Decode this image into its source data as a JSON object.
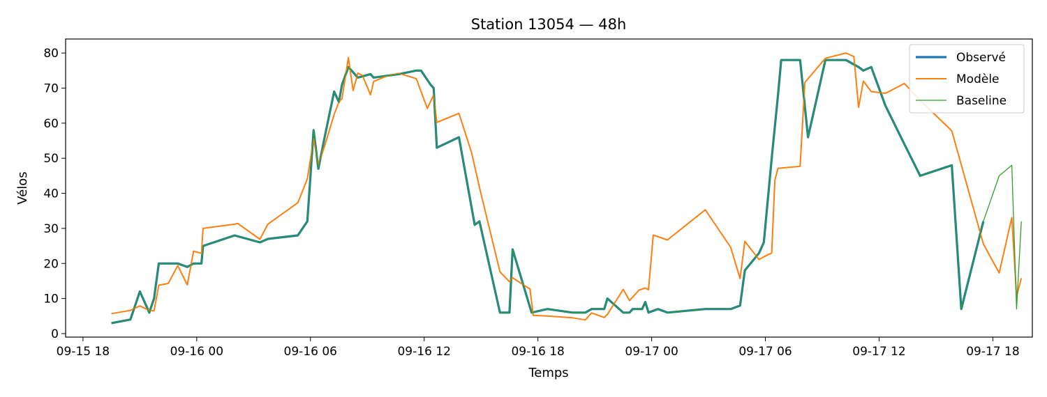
{
  "chart_data": {
    "type": "line",
    "title": "Station 13054 — 48h",
    "xlabel": "Temps",
    "ylabel": "Vélos",
    "x_unit": "datetime",
    "xlim": [
      "2015-09-15 17:05",
      "2015-09-17 20:05"
    ],
    "ylim": [
      -1,
      84
    ],
    "x_ticks": [
      {
        "at": "2015-09-15 18:00",
        "label": "09-15 18"
      },
      {
        "at": "2015-09-16 00:00",
        "label": "09-16 00"
      },
      {
        "at": "2015-09-16 06:00",
        "label": "09-16 06"
      },
      {
        "at": "2015-09-16 12:00",
        "label": "09-16 12"
      },
      {
        "at": "2015-09-16 18:00",
        "label": "09-16 18"
      },
      {
        "at": "2015-09-17 00:00",
        "label": "09-17 00"
      },
      {
        "at": "2015-09-17 06:00",
        "label": "09-17 06"
      },
      {
        "at": "2015-09-17 12:00",
        "label": "09-17 12"
      },
      {
        "at": "2015-09-17 18:00",
        "label": "09-17 18"
      }
    ],
    "y_ticks": [
      0,
      10,
      20,
      30,
      40,
      50,
      60,
      70,
      80
    ],
    "grid": false,
    "legend_position": "top-right",
    "series": [
      {
        "name": "Observé",
        "color": "#1f77b4",
        "points": [
          [
            "2015-09-15 19:30",
            3
          ],
          [
            "2015-09-15 20:30",
            4
          ],
          [
            "2015-09-15 21:00",
            12
          ],
          [
            "2015-09-15 21:30",
            6
          ],
          [
            "2015-09-15 21:45",
            10
          ],
          [
            "2015-09-15 22:00",
            20
          ],
          [
            "2015-09-15 23:00",
            20
          ],
          [
            "2015-09-15 23:30",
            19
          ],
          [
            "2015-09-15 23:50",
            20
          ],
          [
            "2015-09-16 00:15",
            20
          ],
          [
            "2015-09-16 00:20",
            25
          ],
          [
            "2015-09-16 02:00",
            28
          ],
          [
            "2015-09-16 03:20",
            26
          ],
          [
            "2015-09-16 03:45",
            27
          ],
          [
            "2015-09-16 05:20",
            28
          ],
          [
            "2015-09-16 05:50",
            32
          ],
          [
            "2015-09-16 06:10",
            58
          ],
          [
            "2015-09-16 06:25",
            47
          ],
          [
            "2015-09-16 06:45",
            56
          ],
          [
            "2015-09-16 07:15",
            69
          ],
          [
            "2015-09-16 07:30",
            66
          ],
          [
            "2015-09-16 07:40",
            71
          ],
          [
            "2015-09-16 08:00",
            76
          ],
          [
            "2015-09-16 08:30",
            73
          ],
          [
            "2015-09-16 09:10",
            74
          ],
          [
            "2015-09-16 09:20",
            73
          ],
          [
            "2015-09-16 10:40",
            74
          ],
          [
            "2015-09-16 11:35",
            75
          ],
          [
            "2015-09-16 11:50",
            75
          ],
          [
            "2015-09-16 12:20",
            71
          ],
          [
            "2015-09-16 12:30",
            70
          ],
          [
            "2015-09-16 12:40",
            53
          ],
          [
            "2015-09-16 13:50",
            56
          ],
          [
            "2015-09-16 14:40",
            31
          ],
          [
            "2015-09-16 14:55",
            32
          ],
          [
            "2015-09-16 16:00",
            6
          ],
          [
            "2015-09-16 16:30",
            6
          ],
          [
            "2015-09-16 16:40",
            24
          ],
          [
            "2015-09-16 17:40",
            6
          ],
          [
            "2015-09-16 18:30",
            7
          ],
          [
            "2015-09-16 19:50",
            6
          ],
          [
            "2015-09-16 20:30",
            6
          ],
          [
            "2015-09-16 20:50",
            7
          ],
          [
            "2015-09-16 21:30",
            7
          ],
          [
            "2015-09-16 21:40",
            10
          ],
          [
            "2015-09-16 22:30",
            6
          ],
          [
            "2015-09-16 22:50",
            6
          ],
          [
            "2015-09-16 23:00",
            7
          ],
          [
            "2015-09-16 23:30",
            7
          ],
          [
            "2015-09-16 23:40",
            9
          ],
          [
            "2015-09-16 23:50",
            6
          ],
          [
            "2015-09-17 00:20",
            7
          ],
          [
            "2015-09-17 00:50",
            6
          ],
          [
            "2015-09-17 02:50",
            7
          ],
          [
            "2015-09-17 04:10",
            7
          ],
          [
            "2015-09-17 04:40",
            8
          ],
          [
            "2015-09-17 04:55",
            18
          ],
          [
            "2015-09-17 05:40",
            23
          ],
          [
            "2015-09-17 05:55",
            26
          ],
          [
            "2015-09-17 06:20",
            50
          ],
          [
            "2015-09-17 06:40",
            68
          ],
          [
            "2015-09-17 06:50",
            78
          ],
          [
            "2015-09-17 07:50",
            78
          ],
          [
            "2015-09-17 08:15",
            56
          ],
          [
            "2015-09-17 09:10",
            78
          ],
          [
            "2015-09-17 10:15",
            78
          ],
          [
            "2015-09-17 10:55",
            76
          ],
          [
            "2015-09-17 11:10",
            75
          ],
          [
            "2015-09-17 11:35",
            76
          ],
          [
            "2015-09-17 12:20",
            65
          ],
          [
            "2015-09-17 13:20",
            54
          ],
          [
            "2015-09-17 14:10",
            45
          ],
          [
            "2015-09-17 15:50",
            48
          ],
          [
            "2015-09-17 16:20",
            7
          ],
          [
            "2015-09-17 17:30",
            32
          ]
        ]
      },
      {
        "name": "Modèle",
        "color": "#ff7f0e",
        "points": [
          [
            "2015-09-15 19:30",
            5.7
          ],
          [
            "2015-09-15 20:30",
            6.6
          ],
          [
            "2015-09-15 21:00",
            7.9
          ],
          [
            "2015-09-15 21:30",
            6.6
          ],
          [
            "2015-09-15 21:45",
            6.5
          ],
          [
            "2015-09-15 22:00",
            13.8
          ],
          [
            "2015-09-15 22:30",
            14.3
          ],
          [
            "2015-09-15 23:00",
            19.4
          ],
          [
            "2015-09-15 23:30",
            13.9
          ],
          [
            "2015-09-15 23:50",
            23.5
          ],
          [
            "2015-09-16 00:15",
            22.9
          ],
          [
            "2015-09-16 00:20",
            30
          ],
          [
            "2015-09-16 02:00",
            31.2
          ],
          [
            "2015-09-16 02:10",
            31.4
          ],
          [
            "2015-09-16 03:20",
            26.9
          ],
          [
            "2015-09-16 03:45",
            31.2
          ],
          [
            "2015-09-16 05:20",
            37.3
          ],
          [
            "2015-09-16 05:50",
            44.1
          ],
          [
            "2015-09-16 06:10",
            55.5
          ],
          [
            "2015-09-16 06:25",
            48.2
          ],
          [
            "2015-09-16 06:45",
            53.5
          ],
          [
            "2015-09-16 07:15",
            62.5
          ],
          [
            "2015-09-16 07:30",
            66
          ],
          [
            "2015-09-16 07:40",
            67
          ],
          [
            "2015-09-16 08:00",
            78.7
          ],
          [
            "2015-09-16 08:15",
            69.3
          ],
          [
            "2015-09-16 08:30",
            74.3
          ],
          [
            "2015-09-16 08:45",
            73.5
          ],
          [
            "2015-09-16 09:10",
            68.1
          ],
          [
            "2015-09-16 09:20",
            71.9
          ],
          [
            "2015-09-16 10:00",
            73.4
          ],
          [
            "2015-09-16 10:40",
            74.2
          ],
          [
            "2015-09-16 11:35",
            72.7
          ],
          [
            "2015-09-16 12:10",
            64.2
          ],
          [
            "2015-09-16 12:30",
            68.1
          ],
          [
            "2015-09-16 12:40",
            60.2
          ],
          [
            "2015-09-16 13:50",
            62.8
          ],
          [
            "2015-09-16 14:30",
            51.6
          ],
          [
            "2015-09-16 14:55",
            41.7
          ],
          [
            "2015-09-16 16:00",
            17.6
          ],
          [
            "2015-09-16 16:30",
            14.8
          ],
          [
            "2015-09-16 16:40",
            15.9
          ],
          [
            "2015-09-16 17:35",
            12.7
          ],
          [
            "2015-09-16 17:45",
            5.2
          ],
          [
            "2015-09-16 18:30",
            5
          ],
          [
            "2015-09-16 19:50",
            4.5
          ],
          [
            "2015-09-16 20:30",
            3.9
          ],
          [
            "2015-09-16 20:50",
            5.9
          ],
          [
            "2015-09-16 21:30",
            4.6
          ],
          [
            "2015-09-16 21:40",
            5.5
          ],
          [
            "2015-09-16 22:30",
            12.6
          ],
          [
            "2015-09-16 22:50",
            9.4
          ],
          [
            "2015-09-16 23:00",
            10.4
          ],
          [
            "2015-09-16 23:20",
            12.4
          ],
          [
            "2015-09-16 23:40",
            13
          ],
          [
            "2015-09-16 23:50",
            12.5
          ],
          [
            "2015-09-17 00:05",
            28.1
          ],
          [
            "2015-09-17 00:50",
            26.7
          ],
          [
            "2015-09-17 02:50",
            35.3
          ],
          [
            "2015-09-17 04:10",
            24.6
          ],
          [
            "2015-09-17 04:40",
            15.7
          ],
          [
            "2015-09-17 04:55",
            26.3
          ],
          [
            "2015-09-17 05:40",
            21.1
          ],
          [
            "2015-09-17 05:55",
            21.9
          ],
          [
            "2015-09-17 06:20",
            23
          ],
          [
            "2015-09-17 06:30",
            43.7
          ],
          [
            "2015-09-17 06:40",
            47.1
          ],
          [
            "2015-09-17 07:50",
            47.7
          ],
          [
            "2015-09-17 08:05",
            71.6
          ],
          [
            "2015-09-17 09:10",
            78.5
          ],
          [
            "2015-09-17 10:15",
            80
          ],
          [
            "2015-09-17 10:40",
            79
          ],
          [
            "2015-09-17 10:55",
            64.5
          ],
          [
            "2015-09-17 11:10",
            72
          ],
          [
            "2015-09-17 11:35",
            69
          ],
          [
            "2015-09-17 12:20",
            68.5
          ],
          [
            "2015-09-17 13:20",
            71.3
          ],
          [
            "2015-09-17 14:10",
            66.5
          ],
          [
            "2015-09-17 15:50",
            57.8
          ],
          [
            "2015-09-17 17:30",
            25.6
          ],
          [
            "2015-09-17 18:20",
            17.3
          ],
          [
            "2015-09-17 19:00",
            33.1
          ],
          [
            "2015-09-17 19:15",
            10.6
          ],
          [
            "2015-09-17 19:30",
            15.8
          ]
        ]
      },
      {
        "name": "Baseline",
        "color": "#2ca02c",
        "points": [
          [
            "2015-09-15 19:30",
            3
          ],
          [
            "2015-09-15 20:30",
            4
          ],
          [
            "2015-09-15 21:00",
            12
          ],
          [
            "2015-09-15 21:30",
            6
          ],
          [
            "2015-09-15 21:45",
            10
          ],
          [
            "2015-09-15 22:00",
            20
          ],
          [
            "2015-09-15 23:00",
            20
          ],
          [
            "2015-09-15 23:30",
            19
          ],
          [
            "2015-09-15 23:50",
            20
          ],
          [
            "2015-09-16 00:15",
            20
          ],
          [
            "2015-09-16 00:20",
            25
          ],
          [
            "2015-09-16 02:00",
            28
          ],
          [
            "2015-09-16 03:20",
            26
          ],
          [
            "2015-09-16 03:45",
            27
          ],
          [
            "2015-09-16 05:20",
            28
          ],
          [
            "2015-09-16 05:50",
            32
          ],
          [
            "2015-09-16 06:10",
            58
          ],
          [
            "2015-09-16 06:25",
            47
          ],
          [
            "2015-09-16 06:45",
            56
          ],
          [
            "2015-09-16 07:15",
            69
          ],
          [
            "2015-09-16 07:30",
            66
          ],
          [
            "2015-09-16 07:40",
            71
          ],
          [
            "2015-09-16 08:00",
            76
          ],
          [
            "2015-09-16 08:30",
            73
          ],
          [
            "2015-09-16 09:10",
            74
          ],
          [
            "2015-09-16 09:20",
            73
          ],
          [
            "2015-09-16 10:40",
            74
          ],
          [
            "2015-09-16 11:35",
            75
          ],
          [
            "2015-09-16 11:50",
            75
          ],
          [
            "2015-09-16 12:20",
            71
          ],
          [
            "2015-09-16 12:30",
            70
          ],
          [
            "2015-09-16 12:40",
            53
          ],
          [
            "2015-09-16 13:50",
            56
          ],
          [
            "2015-09-16 14:40",
            31
          ],
          [
            "2015-09-16 14:55",
            32
          ],
          [
            "2015-09-16 16:00",
            6
          ],
          [
            "2015-09-16 16:30",
            6
          ],
          [
            "2015-09-16 16:40",
            24
          ],
          [
            "2015-09-16 17:40",
            6
          ],
          [
            "2015-09-16 18:30",
            7
          ],
          [
            "2015-09-16 19:50",
            6
          ],
          [
            "2015-09-16 20:30",
            6
          ],
          [
            "2015-09-16 20:50",
            7
          ],
          [
            "2015-09-16 21:30",
            7
          ],
          [
            "2015-09-16 21:40",
            10
          ],
          [
            "2015-09-16 22:30",
            6
          ],
          [
            "2015-09-16 22:50",
            6
          ],
          [
            "2015-09-16 23:00",
            7
          ],
          [
            "2015-09-16 23:30",
            7
          ],
          [
            "2015-09-16 23:40",
            9
          ],
          [
            "2015-09-16 23:50",
            6
          ],
          [
            "2015-09-17 00:20",
            7
          ],
          [
            "2015-09-17 00:50",
            6
          ],
          [
            "2015-09-17 02:50",
            7
          ],
          [
            "2015-09-17 04:10",
            7
          ],
          [
            "2015-09-17 04:40",
            8
          ],
          [
            "2015-09-17 04:55",
            18
          ],
          [
            "2015-09-17 05:40",
            23
          ],
          [
            "2015-09-17 05:55",
            26
          ],
          [
            "2015-09-17 06:20",
            50
          ],
          [
            "2015-09-17 06:40",
            68
          ],
          [
            "2015-09-17 06:50",
            78
          ],
          [
            "2015-09-17 07:50",
            78
          ],
          [
            "2015-09-17 08:15",
            56
          ],
          [
            "2015-09-17 09:10",
            78
          ],
          [
            "2015-09-17 10:15",
            78
          ],
          [
            "2015-09-17 10:55",
            76
          ],
          [
            "2015-09-17 11:10",
            75
          ],
          [
            "2015-09-17 11:35",
            76
          ],
          [
            "2015-09-17 12:20",
            65
          ],
          [
            "2015-09-17 13:20",
            54
          ],
          [
            "2015-09-17 14:10",
            45
          ],
          [
            "2015-09-17 15:50",
            48
          ],
          [
            "2015-09-17 16:20",
            7
          ],
          [
            "2015-09-17 17:30",
            32
          ],
          [
            "2015-09-17 18:20",
            45
          ],
          [
            "2015-09-17 19:00",
            48
          ],
          [
            "2015-09-17 19:15",
            7
          ],
          [
            "2015-09-17 19:30",
            32
          ]
        ]
      }
    ]
  }
}
